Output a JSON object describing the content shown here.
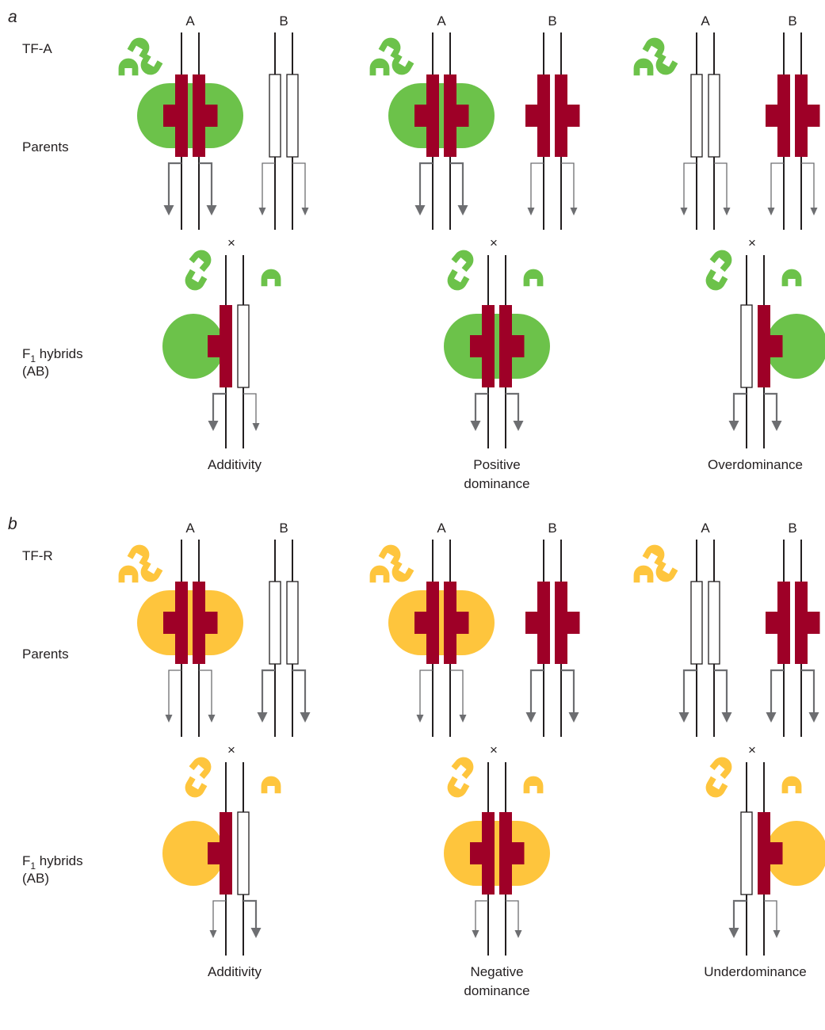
{
  "colors": {
    "activator": "#6cc24a",
    "repressor": "#fec53d",
    "cis_element": "#9e0027",
    "arrow": "#6d6e71",
    "line": "#231f20"
  },
  "icons": {
    "factor_piece": "transcription-factor-icon",
    "cross": "cross-symbol",
    "arrow": "transcription-arrow-icon"
  },
  "labels": {
    "allele_a": "A",
    "allele_b": "B",
    "cross_symbol": "×",
    "parents": "Parents",
    "hybrids_main": "F",
    "hybrids_sub": "1",
    "hybrids_rest": " hybrids",
    "hybrids_ab": "(AB)"
  },
  "panels": [
    {
      "letter": "a",
      "factor_label": "TF-A",
      "factor": "activator",
      "outcomes": [
        {
          "name_lines": [
            "Additivity"
          ],
          "parent_a": {
            "site": true,
            "bound": true,
            "arrow": "strong"
          },
          "parent_b": {
            "site": false,
            "bound": false,
            "arrow": "weak"
          },
          "hybrid": {
            "left_site": true,
            "right_site": false,
            "bound_side": "left",
            "left_arrow": "strong",
            "right_arrow": "weak"
          }
        },
        {
          "name_lines": [
            "Positive",
            "dominance"
          ],
          "parent_a": {
            "site": true,
            "bound": true,
            "arrow": "strong"
          },
          "parent_b": {
            "site": true,
            "bound": false,
            "arrow": "weak"
          },
          "hybrid": {
            "left_site": true,
            "right_site": true,
            "bound_side": "both",
            "left_arrow": "strong",
            "right_arrow": "strong"
          }
        },
        {
          "name_lines": [
            "Overdominance"
          ],
          "parent_a": {
            "site": false,
            "bound": false,
            "arrow": "weak"
          },
          "parent_b": {
            "site": true,
            "bound": false,
            "arrow": "weak"
          },
          "hybrid": {
            "left_site": false,
            "right_site": true,
            "bound_side": "right",
            "left_arrow": "strong",
            "right_arrow": "strong"
          }
        }
      ]
    },
    {
      "letter": "b",
      "factor_label": "TF-R",
      "factor": "repressor",
      "outcomes": [
        {
          "name_lines": [
            "Additivity"
          ],
          "parent_a": {
            "site": true,
            "bound": true,
            "arrow": "weak"
          },
          "parent_b": {
            "site": false,
            "bound": false,
            "arrow": "strong"
          },
          "hybrid": {
            "left_site": true,
            "right_site": false,
            "bound_side": "left",
            "left_arrow": "weak",
            "right_arrow": "strong"
          }
        },
        {
          "name_lines": [
            "Negative",
            "dominance"
          ],
          "parent_a": {
            "site": true,
            "bound": true,
            "arrow": "weak"
          },
          "parent_b": {
            "site": true,
            "bound": false,
            "arrow": "strong"
          },
          "hybrid": {
            "left_site": true,
            "right_site": true,
            "bound_side": "both",
            "left_arrow": "weak",
            "right_arrow": "weak"
          }
        },
        {
          "name_lines": [
            "Underdominance"
          ],
          "parent_a": {
            "site": false,
            "bound": false,
            "arrow": "strong"
          },
          "parent_b": {
            "site": true,
            "bound": false,
            "arrow": "strong"
          },
          "hybrid": {
            "left_site": false,
            "right_site": true,
            "bound_side": "right",
            "left_arrow": "strong",
            "right_arrow": "weak"
          }
        }
      ]
    }
  ]
}
